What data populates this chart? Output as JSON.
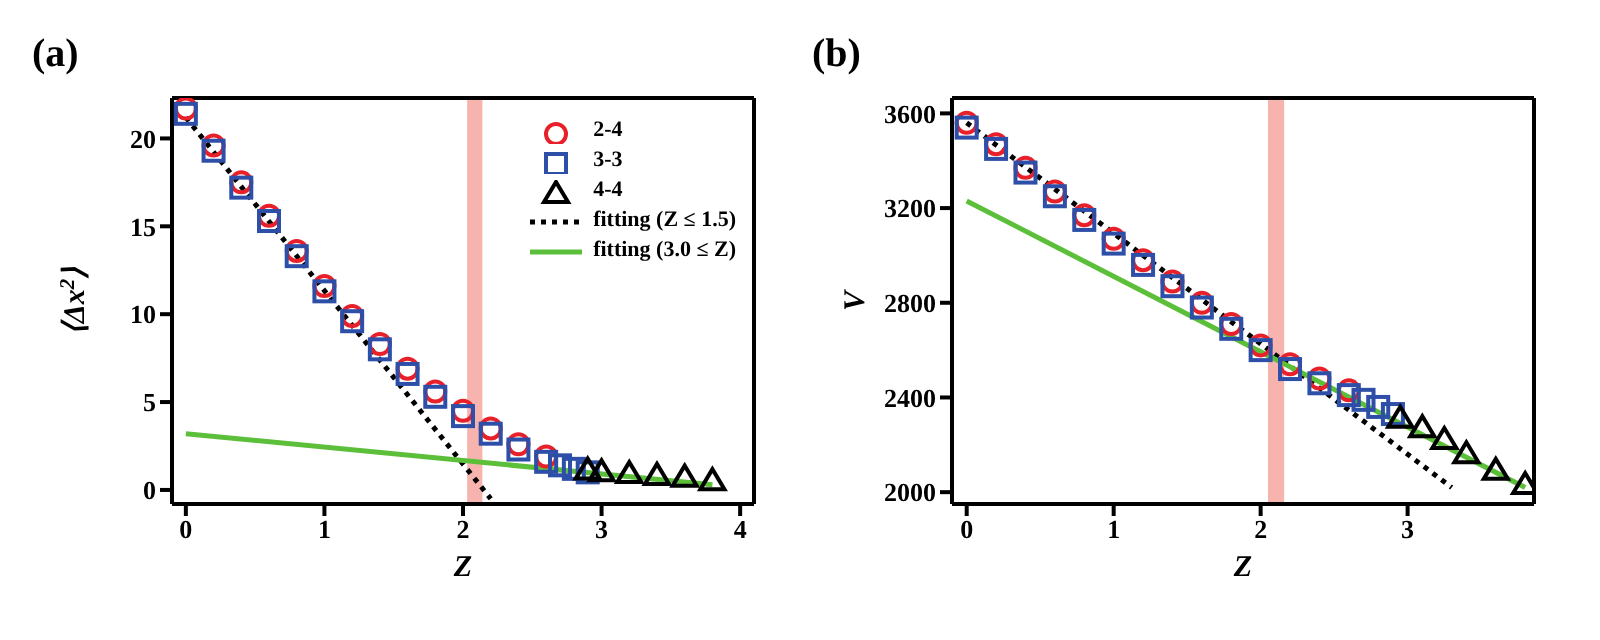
{
  "chart_data": [
    {
      "type": "scatter",
      "title": "(a)",
      "xlabel": "Z",
      "ylabel": "⟨Δx$^{2}$⟩",
      "xlim": [
        -0.1,
        4.1
      ],
      "ylim": [
        -0.8,
        22.3
      ],
      "xticks": [
        0,
        1,
        2,
        3,
        4
      ],
      "yticks": [
        0,
        5,
        10,
        15,
        20
      ],
      "legend": "top right",
      "bands": [
        {
          "axis": "x",
          "from": 2.03,
          "to": 2.14,
          "color": "#f7b3ae"
        }
      ],
      "series": [
        {
          "name": "2-4",
          "marker": "circle",
          "color": "#e8202a",
          "x": [
            0,
            0.2,
            0.4,
            0.6,
            0.8,
            1.0,
            1.2,
            1.4,
            1.6,
            1.8,
            2.0,
            2.2,
            2.4,
            2.6
          ],
          "values": [
            21.7,
            19.6,
            17.5,
            15.6,
            13.6,
            11.6,
            9.9,
            8.3,
            6.9,
            5.6,
            4.5,
            3.5,
            2.6,
            1.9
          ]
        },
        {
          "name": "3-3",
          "marker": "square",
          "color": "#2e4fa8",
          "x": [
            0,
            0.2,
            0.4,
            0.6,
            0.8,
            1.0,
            1.2,
            1.4,
            1.6,
            1.8,
            2.0,
            2.2,
            2.4,
            2.6,
            2.7,
            2.8,
            2.9
          ],
          "values": [
            21.4,
            19.3,
            17.2,
            15.3,
            13.3,
            11.3,
            9.6,
            8.0,
            6.6,
            5.3,
            4.2,
            3.2,
            2.3,
            1.6,
            1.4,
            1.2,
            1.0
          ]
        },
        {
          "name": "4-4",
          "marker": "triangle",
          "color": "#000000",
          "x": [
            2.9,
            3.0,
            3.2,
            3.4,
            3.6,
            3.8
          ],
          "values": [
            1.1,
            1.0,
            0.9,
            0.8,
            0.7,
            0.5
          ]
        },
        {
          "name": "fitting (Z ≤ 1.5)",
          "type": "line",
          "line_style": "dotted",
          "color": "#000000",
          "x": [
            0,
            2.2
          ],
          "values": [
            21.2,
            -0.5
          ]
        },
        {
          "name": "fitting (3.0 ≤ Z)",
          "type": "line",
          "line_style": "solid",
          "color": "#5cbf3a",
          "x": [
            0,
            3.8
          ],
          "values": [
            3.2,
            0.3
          ]
        }
      ]
    },
    {
      "type": "scatter",
      "title": "(b)",
      "xlabel": "Z",
      "ylabel": "V",
      "xlim": [
        -0.1,
        3.86
      ],
      "ylim": [
        1950,
        3665
      ],
      "xticks": [
        0,
        1,
        2,
        3
      ],
      "yticks": [
        2000,
        2400,
        2800,
        3200,
        3600
      ],
      "bands": [
        {
          "axis": "x",
          "from": 2.05,
          "to": 2.16,
          "color": "#f7b3ae"
        }
      ],
      "series": [
        {
          "marker": "circle",
          "color": "#e8202a",
          "x": [
            0,
            0.2,
            0.4,
            0.6,
            0.8,
            1.0,
            1.2,
            1.4,
            1.6,
            1.8,
            2.0,
            2.2,
            2.4,
            2.6
          ],
          "values": [
            3560,
            3470,
            3370,
            3270,
            3170,
            3070,
            2980,
            2890,
            2800,
            2710,
            2620,
            2540,
            2480,
            2430
          ]
        },
        {
          "marker": "square",
          "color": "#2e4fa8",
          "x": [
            0,
            0.2,
            0.4,
            0.6,
            0.8,
            1.0,
            1.2,
            1.4,
            1.6,
            1.8,
            2.0,
            2.2,
            2.4,
            2.6,
            2.7,
            2.8,
            2.9
          ],
          "values": [
            3540,
            3450,
            3350,
            3250,
            3150,
            3050,
            2960,
            2870,
            2780,
            2690,
            2600,
            2520,
            2460,
            2410,
            2390,
            2360,
            2330
          ]
        },
        {
          "marker": "triangle",
          "color": "#000000",
          "x": [
            2.95,
            3.1,
            3.25,
            3.4,
            3.6,
            3.8
          ],
          "values": [
            2310,
            2270,
            2220,
            2160,
            2090,
            2030
          ]
        },
        {
          "type": "line",
          "line_style": "dotted",
          "color": "#000000",
          "x": [
            0,
            3.3
          ],
          "values": [
            3560,
            2020
          ]
        },
        {
          "type": "line",
          "line_style": "solid",
          "color": "#5cbf3a",
          "x": [
            0,
            3.8
          ],
          "values": [
            3230,
            2020
          ]
        }
      ]
    }
  ]
}
